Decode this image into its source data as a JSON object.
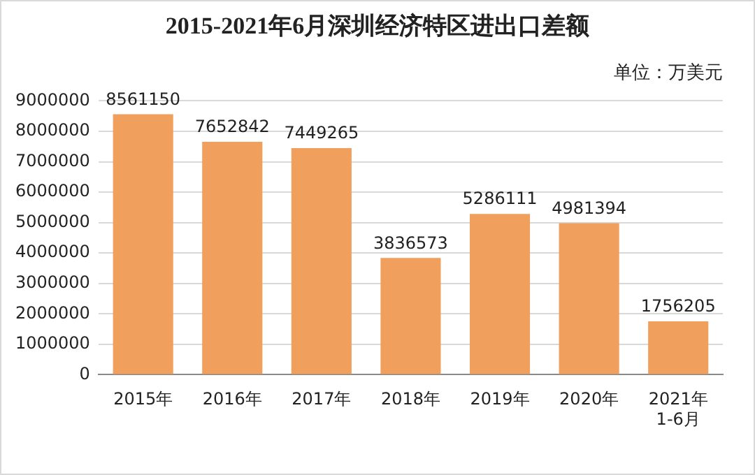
{
  "chart_data": {
    "type": "bar",
    "title": "2015-2021年6月深圳经济特区进出口差额",
    "subtitle": "单位：万美元",
    "categories": [
      "2015年",
      "2016年",
      "2017年",
      "2018年",
      "2019年",
      "2020年",
      "2021年\n1-6月"
    ],
    "values": [
      8561150,
      7652842,
      7449265,
      3836573,
      5286111,
      4981394,
      1756205
    ],
    "color": "#f0a05c",
    "ylim": [
      0,
      9000000
    ],
    "yticks": [
      0,
      1000000,
      2000000,
      3000000,
      4000000,
      5000000,
      6000000,
      7000000,
      8000000,
      9000000
    ],
    "grid": "y",
    "data_labels": true,
    "legend": false
  }
}
